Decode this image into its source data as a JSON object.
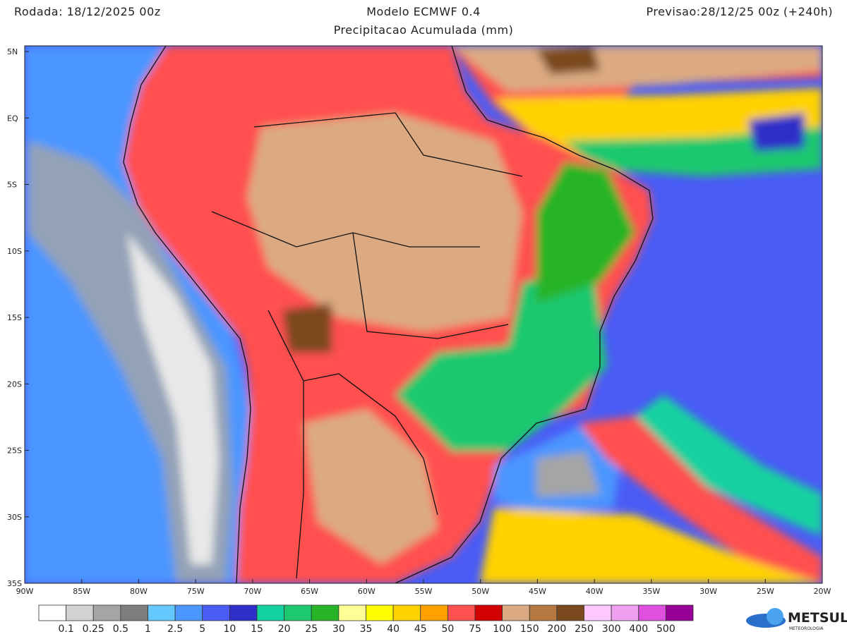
{
  "header": {
    "run": "Rodada: 18/12/2025 00z",
    "model": "Modelo ECMWF 0.4",
    "product": "Precipitacao Acumulada (mm)",
    "forecast": "Previsao:28/12/25 00z (+240h)"
  },
  "map": {
    "lat_labels": [
      "5N",
      "EQ",
      "5S",
      "10S",
      "15S",
      "20S",
      "25S",
      "30S",
      "35S"
    ],
    "lon_labels": [
      "90W",
      "85W",
      "80W",
      "75W",
      "70W",
      "65W",
      "60W",
      "55W",
      "50W",
      "45W",
      "40W",
      "35W",
      "30W",
      "25W",
      "20W"
    ]
  },
  "colorbar": {
    "labels": [
      "0.1",
      "0.25",
      "0.5",
      "1",
      "2.5",
      "5",
      "10",
      "15",
      "20",
      "25",
      "30",
      "35",
      "40",
      "45",
      "50",
      "75",
      "100",
      "150",
      "200",
      "250",
      "300",
      "400",
      "500"
    ],
    "colors": [
      "#ffffff",
      "#d2d2d2",
      "#a5a5a5",
      "#7d7d7d",
      "#64c8ff",
      "#4b96ff",
      "#4a5cf5",
      "#2e2ec8",
      "#14d2a0",
      "#1ec86e",
      "#28b428",
      "#ffff96",
      "#ffff00",
      "#ffd200",
      "#ffa000",
      "#ff5050",
      "#d20000",
      "#dcaa82",
      "#b47840",
      "#7a4a1e",
      "#ffc8ff",
      "#f0a0f0",
      "#e050e0",
      "#960096"
    ]
  },
  "logo": {
    "name": "METSUL",
    "tagline": "METEOROLOGIA"
  }
}
